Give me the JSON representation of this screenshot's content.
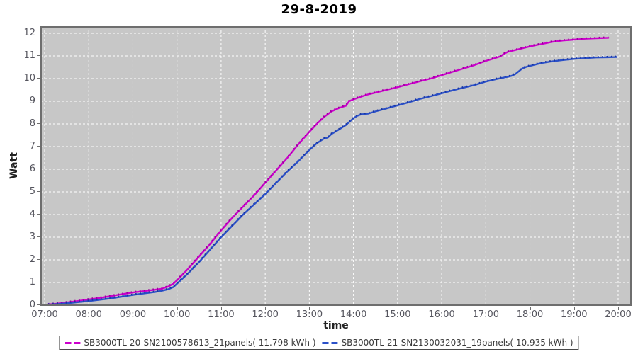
{
  "chart_data": {
    "type": "line",
    "title": "29-8-2019",
    "xlabel": "time",
    "ylabel": "Watt",
    "x_ticks": [
      "07:00",
      "08:00",
      "09:00",
      "10:00",
      "11:00",
      "12:00",
      "13:00",
      "14:00",
      "15:00",
      "16:00",
      "17:00",
      "18:00",
      "19:00",
      "20:00"
    ],
    "y_ticks": [
      0,
      1,
      2,
      3,
      4,
      5,
      6,
      7,
      8,
      9,
      10,
      11,
      12
    ],
    "xlim_hours": [
      6.9,
      20.3
    ],
    "ylim": [
      0,
      12.3
    ],
    "grid": true,
    "legend_position": "bottom",
    "plot_bg": "#c7c7c7",
    "grid_color": "#ffffff",
    "series": [
      {
        "name": "SB3000TL-20-SN2100578613_21panels( 11.798 kWh )",
        "color": "#cc00cc",
        "marker_color": "#990099",
        "points": [
          [
            7.08,
            0.03
          ],
          [
            7.25,
            0.06
          ],
          [
            7.5,
            0.12
          ],
          [
            7.75,
            0.18
          ],
          [
            8.0,
            0.25
          ],
          [
            8.25,
            0.32
          ],
          [
            8.5,
            0.4
          ],
          [
            8.75,
            0.48
          ],
          [
            9.0,
            0.56
          ],
          [
            9.25,
            0.62
          ],
          [
            9.5,
            0.68
          ],
          [
            9.65,
            0.72
          ],
          [
            9.8,
            0.82
          ],
          [
            9.92,
            0.95
          ],
          [
            10.0,
            1.1
          ],
          [
            10.25,
            1.6
          ],
          [
            10.5,
            2.15
          ],
          [
            10.75,
            2.7
          ],
          [
            11.0,
            3.3
          ],
          [
            11.25,
            3.85
          ],
          [
            11.5,
            4.35
          ],
          [
            11.75,
            4.85
          ],
          [
            12.0,
            5.4
          ],
          [
            12.25,
            5.95
          ],
          [
            12.5,
            6.5
          ],
          [
            12.75,
            7.1
          ],
          [
            13.0,
            7.65
          ],
          [
            13.17,
            8.0
          ],
          [
            13.33,
            8.3
          ],
          [
            13.5,
            8.55
          ],
          [
            13.67,
            8.7
          ],
          [
            13.83,
            8.8
          ],
          [
            13.9,
            9.0
          ],
          [
            14.0,
            9.08
          ],
          [
            14.17,
            9.2
          ],
          [
            14.33,
            9.3
          ],
          [
            14.5,
            9.38
          ],
          [
            14.75,
            9.5
          ],
          [
            15.0,
            9.62
          ],
          [
            15.25,
            9.75
          ],
          [
            15.5,
            9.88
          ],
          [
            15.75,
            10.0
          ],
          [
            16.0,
            10.15
          ],
          [
            16.25,
            10.3
          ],
          [
            16.5,
            10.45
          ],
          [
            16.75,
            10.6
          ],
          [
            17.0,
            10.78
          ],
          [
            17.17,
            10.88
          ],
          [
            17.33,
            10.98
          ],
          [
            17.42,
            11.1
          ],
          [
            17.5,
            11.18
          ],
          [
            17.75,
            11.3
          ],
          [
            18.0,
            11.42
          ],
          [
            18.25,
            11.52
          ],
          [
            18.5,
            11.62
          ],
          [
            18.75,
            11.68
          ],
          [
            19.0,
            11.72
          ],
          [
            19.25,
            11.76
          ],
          [
            19.5,
            11.78
          ],
          [
            19.78,
            11.8
          ]
        ]
      },
      {
        "name": "SB3000TL-21-SN2130032031_19panels( 10.935 kWh )",
        "color": "#2b50c8",
        "marker_color": "#1a36a0",
        "points": [
          [
            7.08,
            0.02
          ],
          [
            7.5,
            0.08
          ],
          [
            8.0,
            0.18
          ],
          [
            8.5,
            0.3
          ],
          [
            9.0,
            0.45
          ],
          [
            9.25,
            0.52
          ],
          [
            9.5,
            0.58
          ],
          [
            9.65,
            0.63
          ],
          [
            9.8,
            0.7
          ],
          [
            9.92,
            0.8
          ],
          [
            10.0,
            0.95
          ],
          [
            10.25,
            1.4
          ],
          [
            10.5,
            1.9
          ],
          [
            10.75,
            2.45
          ],
          [
            11.0,
            3.0
          ],
          [
            11.25,
            3.5
          ],
          [
            11.5,
            4.0
          ],
          [
            11.75,
            4.45
          ],
          [
            12.0,
            4.9
          ],
          [
            12.25,
            5.4
          ],
          [
            12.5,
            5.9
          ],
          [
            12.75,
            6.35
          ],
          [
            13.0,
            6.85
          ],
          [
            13.17,
            7.15
          ],
          [
            13.33,
            7.35
          ],
          [
            13.42,
            7.4
          ],
          [
            13.5,
            7.55
          ],
          [
            13.67,
            7.75
          ],
          [
            13.83,
            7.95
          ],
          [
            14.0,
            8.25
          ],
          [
            14.08,
            8.35
          ],
          [
            14.17,
            8.42
          ],
          [
            14.33,
            8.45
          ],
          [
            14.5,
            8.55
          ],
          [
            14.75,
            8.68
          ],
          [
            15.0,
            8.82
          ],
          [
            15.25,
            8.95
          ],
          [
            15.5,
            9.1
          ],
          [
            15.75,
            9.22
          ],
          [
            16.0,
            9.35
          ],
          [
            16.25,
            9.48
          ],
          [
            16.5,
            9.6
          ],
          [
            16.75,
            9.72
          ],
          [
            17.0,
            9.87
          ],
          [
            17.25,
            9.98
          ],
          [
            17.5,
            10.08
          ],
          [
            17.58,
            10.12
          ],
          [
            17.67,
            10.2
          ],
          [
            17.83,
            10.45
          ],
          [
            17.92,
            10.52
          ],
          [
            18.0,
            10.56
          ],
          [
            18.25,
            10.68
          ],
          [
            18.5,
            10.76
          ],
          [
            18.75,
            10.82
          ],
          [
            19.0,
            10.87
          ],
          [
            19.25,
            10.9
          ],
          [
            19.5,
            10.93
          ],
          [
            19.75,
            10.94
          ],
          [
            19.97,
            10.95
          ]
        ]
      }
    ]
  }
}
